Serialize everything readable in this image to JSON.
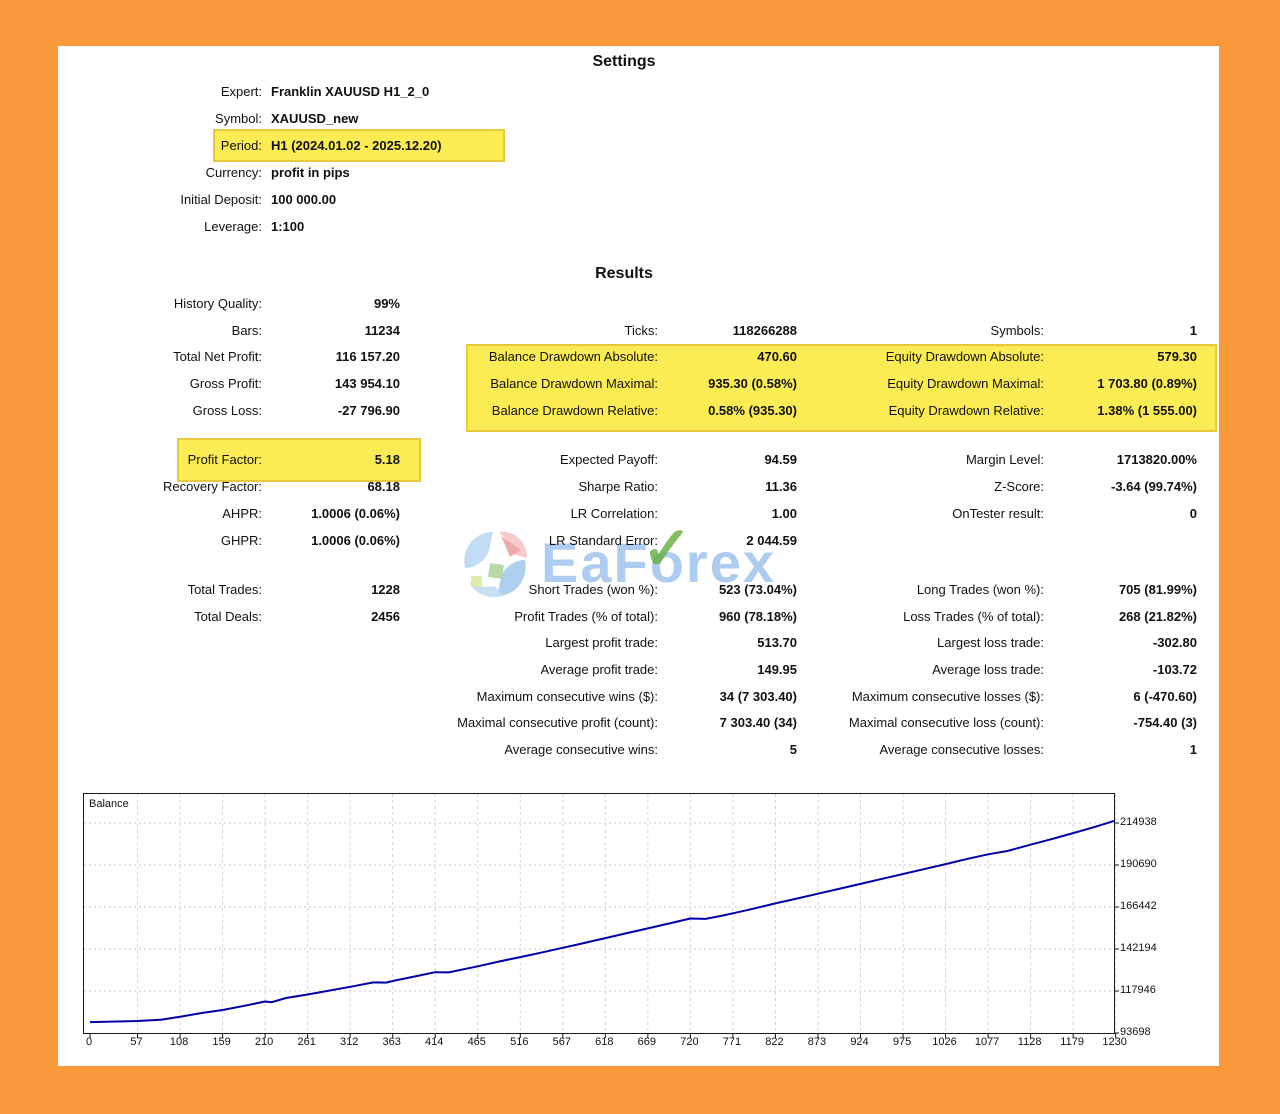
{
  "colors": {
    "frame": "#F8993B",
    "highlight_bg": "#FBEC53",
    "highlight_border": "#E9C93C",
    "line": "#0000A8",
    "watermark_blue": "#6AA3E3",
    "watermark_green": "#60AF3C"
  },
  "settings": {
    "title": "Settings",
    "rows": [
      {
        "label": "Expert:",
        "value": "Franklin XAUUSD H1_2_0"
      },
      {
        "label": "Symbol:",
        "value": "XAUUSD_new"
      },
      {
        "label": "Period:",
        "value": "H1 (2024.01.02 - 2025.12.20)",
        "highlighted": true
      },
      {
        "label": "Currency:",
        "value": "profit in pips"
      },
      {
        "label": "Initial Deposit:",
        "value": "100 000.00"
      },
      {
        "label": "Leverage:",
        "value": "1:100"
      }
    ]
  },
  "results": {
    "title": "Results",
    "col1": [
      {
        "label": "History Quality:",
        "value": "99%"
      },
      {
        "label": "Bars:",
        "value": "11234"
      },
      {
        "label": "Total Net Profit:",
        "value": "116 157.20"
      },
      {
        "label": "Gross Profit:",
        "value": "143 954.10"
      },
      {
        "label": "Gross Loss:",
        "value": "-27 796.90"
      },
      {
        "label": "Profit Factor:",
        "value": "5.18",
        "highlighted": true
      },
      {
        "label": "Recovery Factor:",
        "value": "68.18"
      },
      {
        "label": "AHPR:",
        "value": "1.0006 (0.06%)"
      },
      {
        "label": "GHPR:",
        "value": "1.0006 (0.06%)"
      },
      {
        "label": "Total Trades:",
        "value": "1228"
      },
      {
        "label": "Total Deals:",
        "value": "2456"
      }
    ],
    "col2": [
      {
        "label": "Ticks:",
        "value": "118266288"
      },
      {
        "label": "Balance Drawdown Absolute:",
        "value": "470.60",
        "highlighted": true
      },
      {
        "label": "Balance Drawdown Maximal:",
        "value": "935.30 (0.58%)",
        "highlighted": true
      },
      {
        "label": "Balance Drawdown Relative:",
        "value": "0.58% (935.30)",
        "highlighted": true
      },
      {
        "label": "Expected Payoff:",
        "value": "94.59"
      },
      {
        "label": "Sharpe Ratio:",
        "value": "11.36"
      },
      {
        "label": "LR Correlation:",
        "value": "1.00"
      },
      {
        "label": "LR Standard Error:",
        "value": "2 044.59"
      },
      {
        "label": "Short Trades (won %):",
        "value": "523 (73.04%)"
      },
      {
        "label": "Profit Trades (% of total):",
        "value": "960 (78.18%)"
      },
      {
        "label": "Largest profit trade:",
        "value": "513.70"
      },
      {
        "label": "Average profit trade:",
        "value": "149.95"
      },
      {
        "label": "Maximum consecutive wins ($):",
        "value": "34 (7 303.40)"
      },
      {
        "label": "Maximal consecutive profit (count):",
        "value": "7 303.40 (34)"
      },
      {
        "label": "Average consecutive wins:",
        "value": "5"
      }
    ],
    "col3": [
      {
        "label": "Symbols:",
        "value": "1"
      },
      {
        "label": "Equity Drawdown Absolute:",
        "value": "579.30",
        "highlighted": true
      },
      {
        "label": "Equity Drawdown Maximal:",
        "value": "1 703.80 (0.89%)",
        "highlighted": true
      },
      {
        "label": "Equity Drawdown Relative:",
        "value": "1.38% (1 555.00)",
        "highlighted": true
      },
      {
        "label": "Margin Level:",
        "value": "1713820.00%"
      },
      {
        "label": "Z-Score:",
        "value": "-3.64 (99.74%)"
      },
      {
        "label": "OnTester result:",
        "value": "0"
      },
      {
        "label": "Long Trades (won %):",
        "value": "705 (81.99%)"
      },
      {
        "label": "Loss Trades (% of total):",
        "value": "268 (21.82%)"
      },
      {
        "label": "Largest loss trade:",
        "value": "-302.80"
      },
      {
        "label": "Average loss trade:",
        "value": "-103.72"
      },
      {
        "label": "Maximum consecutive losses ($):",
        "value": "6 (-470.60)"
      },
      {
        "label": "Maximal consecutive loss (count):",
        "value": "-754.40 (3)"
      },
      {
        "label": "Average consecutive losses:",
        "value": "1"
      }
    ]
  },
  "watermark": {
    "pre": "EaF",
    "o": "o",
    "post": "rex",
    "check": "✓"
  },
  "chart_data": {
    "type": "line",
    "title": "Balance",
    "series": [
      {
        "name": "Balance",
        "points": [
          [
            0,
            100000
          ],
          [
            25,
            100300
          ],
          [
            57,
            100650
          ],
          [
            85,
            101400
          ],
          [
            108,
            103100
          ],
          [
            135,
            105300
          ],
          [
            159,
            107000
          ],
          [
            185,
            109400
          ],
          [
            210,
            111900
          ],
          [
            218,
            111500
          ],
          [
            235,
            113900
          ],
          [
            261,
            115900
          ],
          [
            285,
            118000
          ],
          [
            312,
            120400
          ],
          [
            340,
            122900
          ],
          [
            355,
            122800
          ],
          [
            363,
            123700
          ],
          [
            390,
            126400
          ],
          [
            414,
            128800
          ],
          [
            430,
            128700
          ],
          [
            465,
            132200
          ],
          [
            490,
            134900
          ],
          [
            516,
            137500
          ],
          [
            540,
            140000
          ],
          [
            567,
            142900
          ],
          [
            590,
            145400
          ],
          [
            618,
            148500
          ],
          [
            645,
            151500
          ],
          [
            669,
            154100
          ],
          [
            695,
            157000
          ],
          [
            720,
            159800
          ],
          [
            738,
            159600
          ],
          [
            760,
            161600
          ],
          [
            771,
            162800
          ],
          [
            795,
            165400
          ],
          [
            822,
            168500
          ],
          [
            850,
            171600
          ],
          [
            873,
            174100
          ],
          [
            900,
            177100
          ],
          [
            924,
            179800
          ],
          [
            950,
            182700
          ],
          [
            975,
            185500
          ],
          [
            1000,
            188300
          ],
          [
            1026,
            191200
          ],
          [
            1050,
            194000
          ],
          [
            1077,
            196900
          ],
          [
            1100,
            198800
          ],
          [
            1128,
            202400
          ],
          [
            1155,
            205900
          ],
          [
            1179,
            209100
          ],
          [
            1205,
            212700
          ],
          [
            1228,
            216157
          ]
        ]
      }
    ],
    "x_ticks": [
      0,
      57,
      108,
      159,
      210,
      261,
      312,
      363,
      414,
      465,
      516,
      567,
      618,
      669,
      720,
      771,
      822,
      873,
      924,
      975,
      1026,
      1077,
      1128,
      1179,
      1230
    ],
    "y_ticks": [
      93698,
      117946,
      142194,
      166442,
      190690,
      214938
    ],
    "xlim": [
      0,
      1228
    ],
    "ylim": [
      93698,
      231690
    ],
    "grid": true,
    "legend_position": "top-left",
    "line_color": "#0000A8"
  }
}
